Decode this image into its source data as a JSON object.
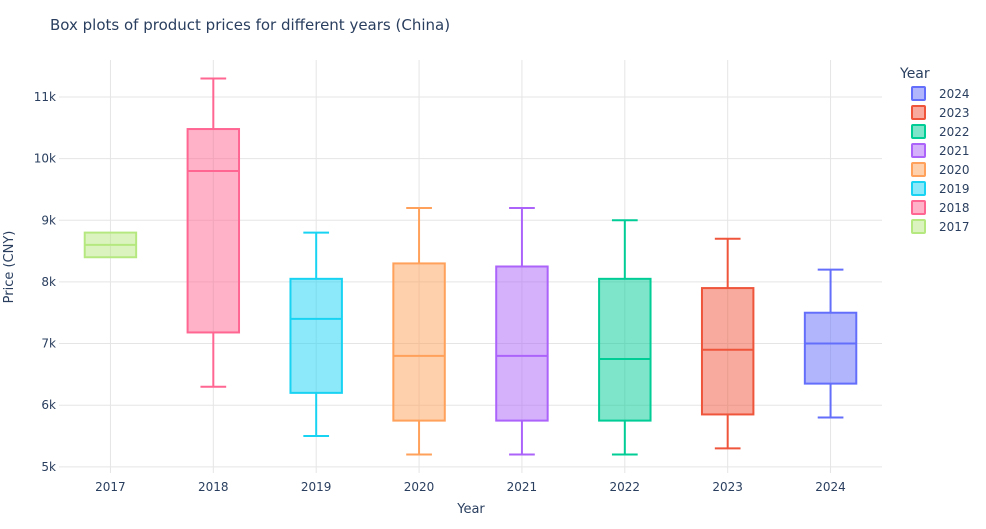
{
  "chart_data": {
    "type": "box",
    "title": "Box plots of product prices for different years (China)",
    "xlabel": "Year",
    "ylabel": "Price (CNY)",
    "categories": [
      "2017",
      "2018",
      "2019",
      "2020",
      "2021",
      "2022",
      "2023",
      "2024"
    ],
    "ylim": [
      4900,
      11600
    ],
    "yticks": [
      5000,
      6000,
      7000,
      8000,
      9000,
      10000,
      11000
    ],
    "ytick_labels": [
      "5k",
      "6k",
      "7k",
      "8k",
      "9k",
      "10k",
      "11k"
    ],
    "grid": true,
    "legend": {
      "title": "Year",
      "placement": "right",
      "order": [
        "2024",
        "2023",
        "2022",
        "2021",
        "2020",
        "2019",
        "2018",
        "2017"
      ]
    },
    "series": [
      {
        "name": "2017",
        "color": "#B6E880",
        "min": 8400,
        "q1": 8400,
        "median": 8600,
        "q3": 8800,
        "max": 8800
      },
      {
        "name": "2018",
        "color": "#FF6692",
        "min": 6300,
        "q1": 7180,
        "median": 9800,
        "q3": 10480,
        "max": 11300
      },
      {
        "name": "2019",
        "color": "#19D3F3",
        "min": 5500,
        "q1": 6200,
        "median": 7400,
        "q3": 8050,
        "max": 8800
      },
      {
        "name": "2020",
        "color": "#FFA15A",
        "min": 5200,
        "q1": 5750,
        "median": 6800,
        "q3": 8300,
        "max": 9200
      },
      {
        "name": "2021",
        "color": "#AB63FA",
        "min": 5200,
        "q1": 5750,
        "median": 6800,
        "q3": 8250,
        "max": 9200
      },
      {
        "name": "2022",
        "color": "#00CC96",
        "min": 5200,
        "q1": 5750,
        "median": 6750,
        "q3": 8050,
        "max": 9000
      },
      {
        "name": "2023",
        "color": "#EF553B",
        "min": 5300,
        "q1": 5850,
        "median": 6900,
        "q3": 7900,
        "max": 8700
      },
      {
        "name": "2024",
        "color": "#636EFA",
        "min": 5800,
        "q1": 6350,
        "median": 7000,
        "q3": 7500,
        "max": 8200
      }
    ]
  }
}
